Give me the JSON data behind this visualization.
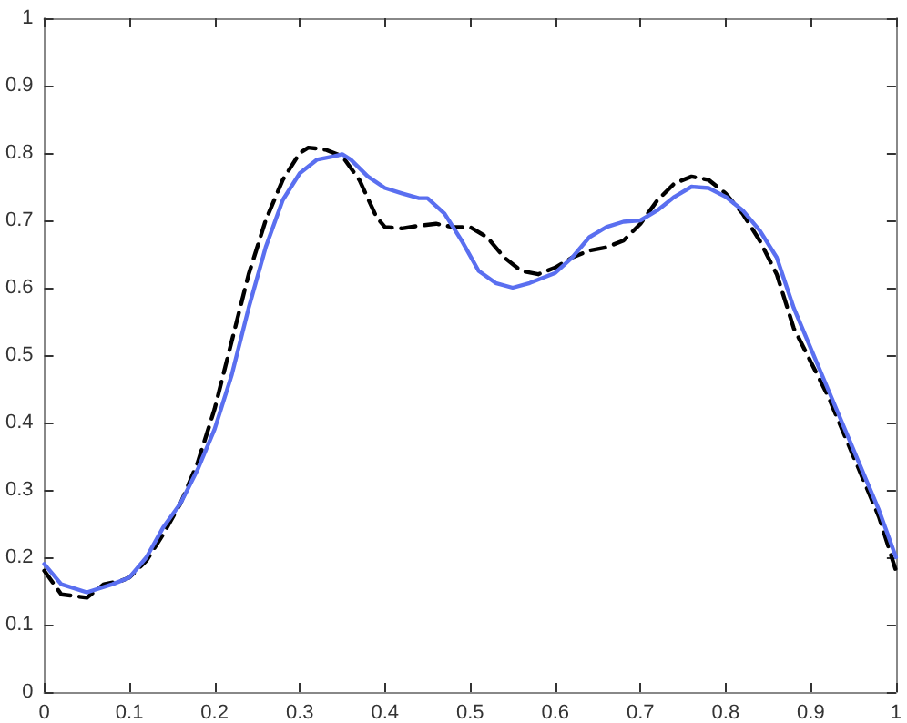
{
  "chart_data": {
    "type": "line",
    "xlim": [
      0,
      1
    ],
    "ylim": [
      0,
      1
    ],
    "xticks": [
      0,
      0.1,
      0.2,
      0.3,
      0.4,
      0.5,
      0.6,
      0.7,
      0.8,
      0.9,
      1
    ],
    "yticks": [
      0,
      0.1,
      0.2,
      0.3,
      0.4,
      0.5,
      0.6,
      0.7,
      0.8,
      0.9,
      1
    ],
    "grid": false,
    "marker": "none",
    "series": [
      {
        "color": "#000000",
        "line_style": "dashed",
        "x": [
          0,
          0.02,
          0.05,
          0.07,
          0.09,
          0.1,
          0.12,
          0.14,
          0.16,
          0.18,
          0.2,
          0.22,
          0.24,
          0.26,
          0.28,
          0.3,
          0.31,
          0.33,
          0.35,
          0.37,
          0.39,
          0.4,
          0.42,
          0.44,
          0.46,
          0.48,
          0.5,
          0.52,
          0.54,
          0.56,
          0.58,
          0.6,
          0.62,
          0.64,
          0.66,
          0.68,
          0.7,
          0.72,
          0.74,
          0.76,
          0.78,
          0.8,
          0.82,
          0.84,
          0.86,
          0.88,
          0.9,
          0.92,
          0.94,
          0.96,
          0.98,
          1
        ],
        "values": [
          0.18,
          0.145,
          0.14,
          0.16,
          0.165,
          0.17,
          0.195,
          0.235,
          0.28,
          0.34,
          0.42,
          0.52,
          0.62,
          0.7,
          0.76,
          0.8,
          0.808,
          0.805,
          0.795,
          0.76,
          0.705,
          0.69,
          0.688,
          0.692,
          0.695,
          0.69,
          0.69,
          0.675,
          0.645,
          0.625,
          0.62,
          0.63,
          0.645,
          0.655,
          0.66,
          0.67,
          0.695,
          0.73,
          0.755,
          0.765,
          0.76,
          0.74,
          0.71,
          0.67,
          0.62,
          0.54,
          0.49,
          0.44,
          0.38,
          0.32,
          0.26,
          0.18
        ]
      },
      {
        "color": "#5a6ff0",
        "line_style": "solid",
        "x": [
          0,
          0.02,
          0.05,
          0.08,
          0.1,
          0.12,
          0.14,
          0.16,
          0.18,
          0.2,
          0.22,
          0.24,
          0.26,
          0.28,
          0.3,
          0.32,
          0.34,
          0.35,
          0.36,
          0.38,
          0.4,
          0.42,
          0.44,
          0.45,
          0.47,
          0.49,
          0.51,
          0.53,
          0.55,
          0.57,
          0.6,
          0.62,
          0.64,
          0.66,
          0.68,
          0.7,
          0.72,
          0.74,
          0.76,
          0.78,
          0.8,
          0.82,
          0.84,
          0.86,
          0.88,
          0.9,
          0.92,
          0.94,
          0.96,
          0.98,
          1
        ],
        "values": [
          0.19,
          0.16,
          0.148,
          0.16,
          0.17,
          0.2,
          0.245,
          0.28,
          0.33,
          0.39,
          0.47,
          0.57,
          0.66,
          0.73,
          0.77,
          0.79,
          0.795,
          0.798,
          0.79,
          0.765,
          0.748,
          0.74,
          0.733,
          0.733,
          0.71,
          0.67,
          0.625,
          0.607,
          0.6,
          0.607,
          0.622,
          0.645,
          0.675,
          0.69,
          0.698,
          0.7,
          0.715,
          0.735,
          0.75,
          0.748,
          0.735,
          0.715,
          0.685,
          0.645,
          0.57,
          0.51,
          0.45,
          0.39,
          0.33,
          0.27,
          0.2
        ]
      }
    ]
  }
}
